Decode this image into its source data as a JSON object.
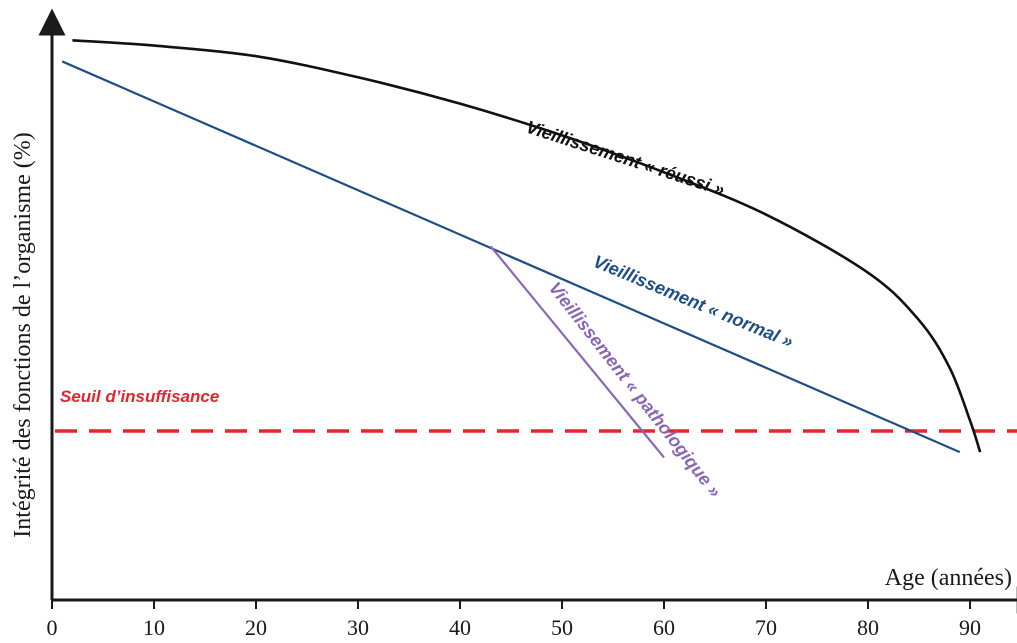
{
  "chart_data": {
    "type": "line",
    "title": "",
    "xlabel": "Age (années)",
    "ylabel": "Intégrité des fonctions de l’organisme (%)",
    "xlim": [
      0,
      95
    ],
    "ylim": [
      0,
      110
    ],
    "x_ticks": [
      0,
      10,
      20,
      30,
      40,
      50,
      60,
      70,
      80,
      90
    ],
    "grid": false,
    "series": [
      {
        "name": "Vieillissement « réussi »",
        "color": "#111111",
        "x": [
          2,
          10,
          20,
          30,
          40,
          50,
          60,
          70,
          80,
          85,
          88,
          90,
          91
        ],
        "y": [
          106,
          105,
          103,
          99,
          94,
          88,
          81,
          73,
          62,
          53,
          44,
          34,
          28
        ]
      },
      {
        "name": "Vieillissement « normal »",
        "color": "#1f4e87",
        "x": [
          1,
          89
        ],
        "y": [
          102,
          28
        ]
      },
      {
        "name": "Vieillissement « pathologique »",
        "color": "#8a67b3",
        "x": [
          43,
          60
        ],
        "y": [
          67,
          27
        ]
      }
    ],
    "threshold": {
      "name": "Seuil d’insuffisance",
      "color": "#e3262d",
      "y": 32
    }
  }
}
